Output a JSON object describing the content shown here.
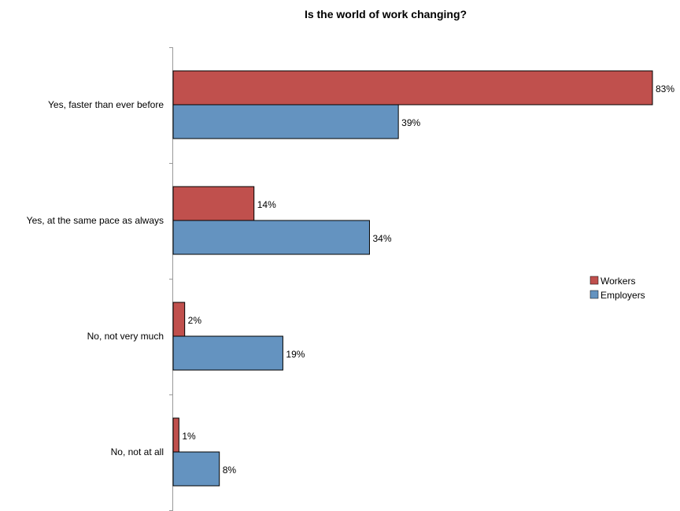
{
  "chart_data": {
    "type": "bar",
    "orientation": "horizontal",
    "title": "Is the world of work changing?",
    "categories": [
      "Yes, faster than ever before",
      "Yes, at the same pace as always",
      "No, not very much",
      "No, not at all"
    ],
    "series": [
      {
        "name": "Workers",
        "color": "#c0504d",
        "values": [
          83,
          14,
          2,
          1
        ],
        "labels": [
          "83%",
          "14%",
          "2%",
          "1%"
        ]
      },
      {
        "name": "Employers",
        "color": "#6493c0",
        "values": [
          39,
          34,
          19,
          8
        ],
        "labels": [
          "39%",
          "34%",
          "19%",
          "8%"
        ]
      }
    ],
    "xlim": [
      0,
      83
    ],
    "grid": false,
    "legend": "right"
  }
}
